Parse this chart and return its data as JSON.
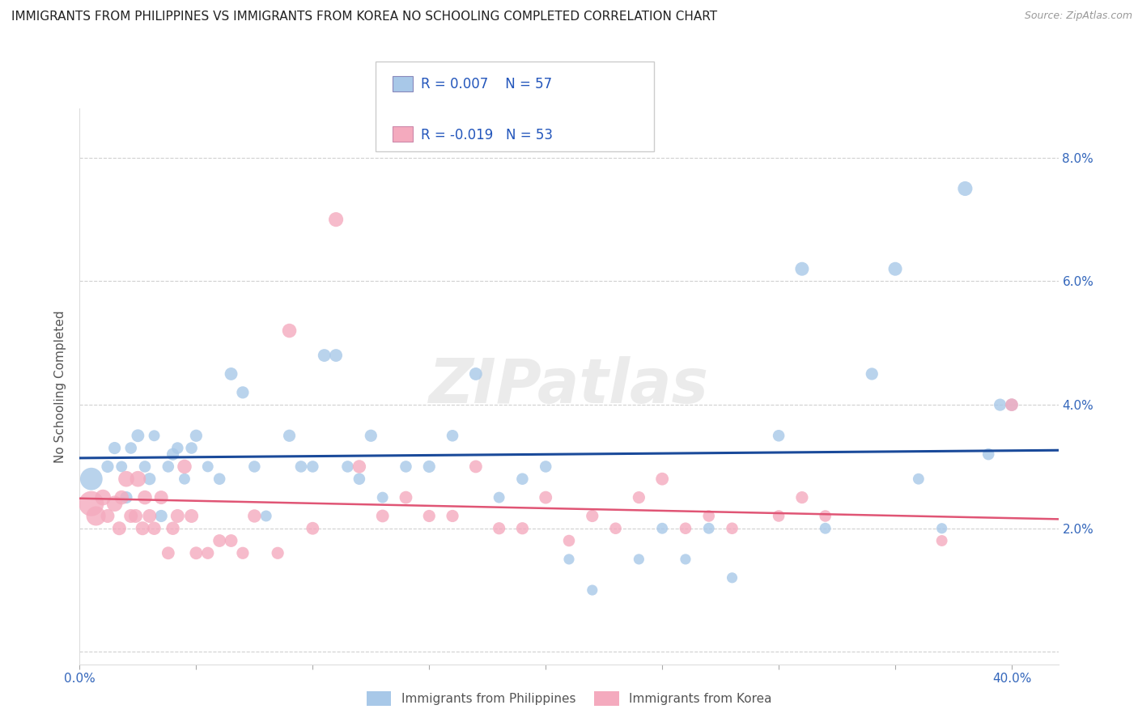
{
  "title": "IMMIGRANTS FROM PHILIPPINES VS IMMIGRANTS FROM KOREA NO SCHOOLING COMPLETED CORRELATION CHART",
  "source": "Source: ZipAtlas.com",
  "ylabel": "No Schooling Completed",
  "xlim": [
    0.0,
    0.42
  ],
  "ylim": [
    -0.002,
    0.088
  ],
  "yticks": [
    0.0,
    0.02,
    0.04,
    0.06,
    0.08
  ],
  "ytick_labels": [
    "",
    "2.0%",
    "4.0%",
    "6.0%",
    "8.0%"
  ],
  "xticks": [
    0.0,
    0.05,
    0.1,
    0.15,
    0.2,
    0.25,
    0.3,
    0.35,
    0.4
  ],
  "xtick_labels_show": [
    "0.0%",
    "",
    "",
    "",
    "",
    "",
    "",
    "",
    "40.0%"
  ],
  "legend_r1": "0.007",
  "legend_n1": "57",
  "legend_r2": "-0.019",
  "legend_n2": "53",
  "color_philippines": "#a8c8e8",
  "color_korea": "#f4aabe",
  "color_line_philippines": "#1a4a9a",
  "color_line_korea": "#e05575",
  "background_color": "#ffffff",
  "grid_color": "#d0d0d0",
  "watermark": "ZIPatlas",
  "philippines_x": [
    0.005,
    0.012,
    0.015,
    0.018,
    0.02,
    0.022,
    0.025,
    0.028,
    0.03,
    0.032,
    0.035,
    0.038,
    0.04,
    0.042,
    0.045,
    0.048,
    0.05,
    0.055,
    0.06,
    0.065,
    0.07,
    0.075,
    0.08,
    0.09,
    0.095,
    0.1,
    0.105,
    0.11,
    0.115,
    0.12,
    0.125,
    0.13,
    0.14,
    0.15,
    0.16,
    0.17,
    0.18,
    0.19,
    0.2,
    0.21,
    0.22,
    0.24,
    0.25,
    0.26,
    0.27,
    0.28,
    0.3,
    0.31,
    0.32,
    0.34,
    0.35,
    0.36,
    0.37,
    0.38,
    0.39,
    0.395,
    0.4
  ],
  "philippines_y": [
    0.028,
    0.03,
    0.033,
    0.03,
    0.025,
    0.033,
    0.035,
    0.03,
    0.028,
    0.035,
    0.022,
    0.03,
    0.032,
    0.033,
    0.028,
    0.033,
    0.035,
    0.03,
    0.028,
    0.045,
    0.042,
    0.03,
    0.022,
    0.035,
    0.03,
    0.03,
    0.048,
    0.048,
    0.03,
    0.028,
    0.035,
    0.025,
    0.03,
    0.03,
    0.035,
    0.045,
    0.025,
    0.028,
    0.03,
    0.015,
    0.01,
    0.015,
    0.02,
    0.015,
    0.02,
    0.012,
    0.035,
    0.062,
    0.02,
    0.045,
    0.062,
    0.028,
    0.02,
    0.075,
    0.032,
    0.04,
    0.04
  ],
  "korea_x": [
    0.005,
    0.007,
    0.01,
    0.012,
    0.015,
    0.017,
    0.018,
    0.02,
    0.022,
    0.024,
    0.025,
    0.027,
    0.028,
    0.03,
    0.032,
    0.035,
    0.038,
    0.04,
    0.042,
    0.045,
    0.048,
    0.05,
    0.055,
    0.06,
    0.065,
    0.07,
    0.075,
    0.085,
    0.09,
    0.1,
    0.11,
    0.12,
    0.13,
    0.14,
    0.15,
    0.16,
    0.17,
    0.18,
    0.19,
    0.2,
    0.21,
    0.22,
    0.23,
    0.24,
    0.25,
    0.26,
    0.27,
    0.28,
    0.3,
    0.31,
    0.32,
    0.37,
    0.4
  ],
  "korea_y": [
    0.024,
    0.022,
    0.025,
    0.022,
    0.024,
    0.02,
    0.025,
    0.028,
    0.022,
    0.022,
    0.028,
    0.02,
    0.025,
    0.022,
    0.02,
    0.025,
    0.016,
    0.02,
    0.022,
    0.03,
    0.022,
    0.016,
    0.016,
    0.018,
    0.018,
    0.016,
    0.022,
    0.016,
    0.052,
    0.02,
    0.07,
    0.03,
    0.022,
    0.025,
    0.022,
    0.022,
    0.03,
    0.02,
    0.02,
    0.025,
    0.018,
    0.022,
    0.02,
    0.025,
    0.028,
    0.02,
    0.022,
    0.02,
    0.022,
    0.025,
    0.022,
    0.018,
    0.04
  ],
  "phil_sizes": [
    400,
    120,
    120,
    100,
    120,
    110,
    130,
    110,
    120,
    100,
    120,
    110,
    120,
    110,
    100,
    110,
    120,
    100,
    110,
    130,
    120,
    110,
    100,
    120,
    110,
    110,
    130,
    130,
    110,
    110,
    120,
    100,
    110,
    120,
    110,
    130,
    100,
    110,
    110,
    90,
    90,
    90,
    100,
    90,
    100,
    90,
    110,
    150,
    100,
    120,
    150,
    100,
    90,
    170,
    110,
    120,
    120
  ],
  "korea_sizes": [
    500,
    300,
    200,
    150,
    200,
    150,
    160,
    200,
    150,
    150,
    200,
    150,
    160,
    150,
    140,
    150,
    130,
    140,
    150,
    160,
    150,
    130,
    120,
    130,
    130,
    120,
    140,
    120,
    160,
    130,
    170,
    140,
    130,
    130,
    120,
    120,
    130,
    120,
    120,
    130,
    110,
    120,
    110,
    120,
    130,
    110,
    110,
    110,
    110,
    120,
    110,
    100,
    130
  ]
}
